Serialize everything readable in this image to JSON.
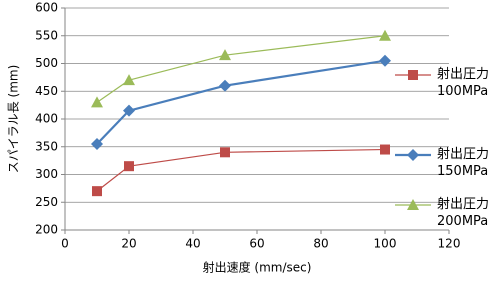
{
  "chart_data": {
    "type": "line",
    "x_label": "射出速度 (mm/sec)",
    "y_label": "スパイラル長 (mm)",
    "x": [
      10,
      20,
      50,
      100
    ],
    "series": [
      {
        "name": "射出圧力 100MPa",
        "color": "#be4b48",
        "marker": "square",
        "values": [
          270,
          315,
          340,
          345
        ]
      },
      {
        "name": "射出圧力 150MPa",
        "color": "#4a7ebb",
        "marker": "diamond",
        "values": [
          355,
          415,
          460,
          505
        ]
      },
      {
        "name": "射出圧力 200MPa",
        "color": "#9bbb59",
        "marker": "triangle",
        "values": [
          430,
          470,
          515,
          550
        ]
      }
    ],
    "xlim": [
      0,
      120
    ],
    "xticks": [
      0,
      20,
      40,
      60,
      80,
      100,
      120
    ],
    "ylim": [
      200,
      600
    ],
    "yticks": [
      200,
      250,
      300,
      350,
      400,
      450,
      500,
      550,
      600
    ],
    "grid": true,
    "legend": "right"
  }
}
